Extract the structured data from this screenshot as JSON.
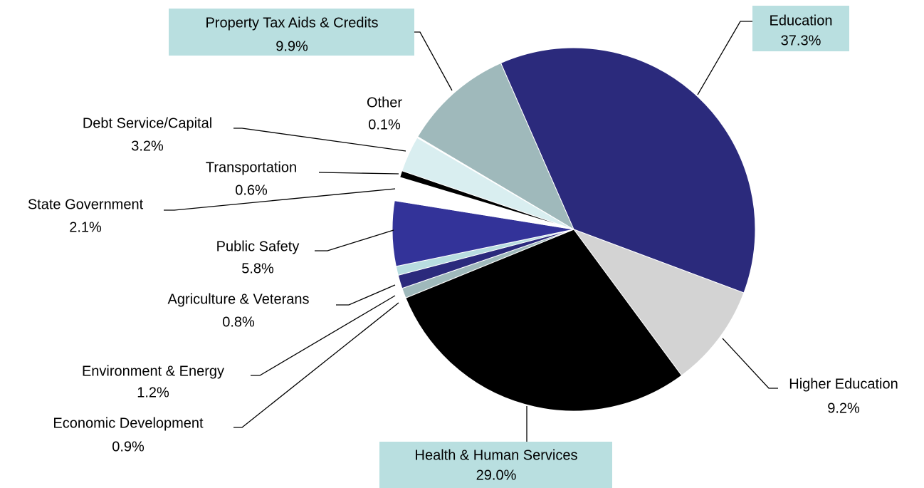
{
  "chart_data": {
    "type": "pie",
    "categories": [
      "Education",
      "Higher Education",
      "Health & Human Services",
      "Economic Development",
      "Environment & Energy",
      "Agriculture & Veterans",
      "Public Safety",
      "State Government",
      "Transportation",
      "Debt Service/Capital",
      "Other",
      "Property Tax Aids & Credits"
    ],
    "values": [
      37.3,
      9.2,
      29.0,
      0.9,
      1.2,
      0.8,
      5.8,
      2.1,
      0.6,
      3.2,
      0.1,
      9.9
    ],
    "value_labels": [
      "37.3%",
      "9.2%",
      "29.0%",
      "0.9%",
      "1.2%",
      "0.8%",
      "5.8%",
      "2.1%",
      "0.6%",
      "3.2%",
      "0.1%",
      "9.9%"
    ],
    "colors": [
      "#2b2a7c",
      "#d3d3d3",
      "#000000",
      "#9fb9bb",
      "#2b2a7c",
      "#b8dde0",
      "#333399",
      "#ffffff",
      "#000000",
      "#d9eef0",
      "#ffffff",
      "#9fb9bb"
    ]
  }
}
